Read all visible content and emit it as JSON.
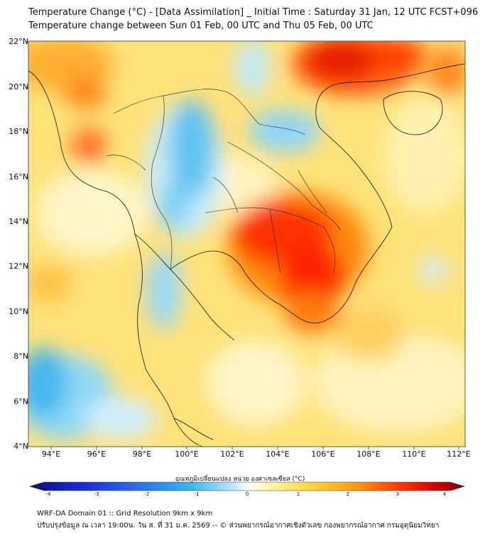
{
  "header": {
    "title_line1": "Temperature Change (°C) - [Data Assimilation] _ Initial Time : Saturday 31 Jan, 12 UTC FCST+096",
    "title_line2": "Temperature change between Sun 01 Feb, 00 UTC and Thu 05 Feb, 00 UTC"
  },
  "map": {
    "lat_labels": [
      "22°N",
      "20°N",
      "18°N",
      "16°N",
      "14°N",
      "12°N",
      "10°N",
      "8°N",
      "6°N",
      "4°N"
    ],
    "lon_labels": [
      "94°E",
      "96°E",
      "98°E",
      "100°E",
      "102°E",
      "104°E",
      "106°E",
      "108°E",
      "110°E",
      "112°E"
    ],
    "field_notes": "warm anomaly over Cambodia/southern Laos, cool anomaly over northern Thailand"
  },
  "colorbar": {
    "label": "อุณหภูมิเปลี่ยนแปลง หน่วย องศาเซลเซียส (°C)",
    "ticks": [
      "-4",
      "-3",
      "-2",
      "-1",
      "0",
      "1",
      "2",
      "3",
      "4"
    ],
    "colors": [
      "#0b0b7a",
      "#1b2bd0",
      "#2f6ee8",
      "#38b6ee",
      "#bfe8fb",
      "#ffffff",
      "#fff3a0",
      "#ffd23a",
      "#ff9a10",
      "#ff3a00",
      "#cc0000",
      "#6a0000"
    ]
  },
  "footer": {
    "line1": "WRF-DA Domain 01 :: Grid Resolution 9km x 9km",
    "line2": "ปรับปรุงข้อมูล ณ เวลา 19:00น. วัน ส. ที่ 31 ม.ค. 2569 -- © ส่วนพยากรณ์อากาศเชิงตัวเลข กองพยากรณ์อากาศ กรมอุตุนิยมวิทยา"
  }
}
